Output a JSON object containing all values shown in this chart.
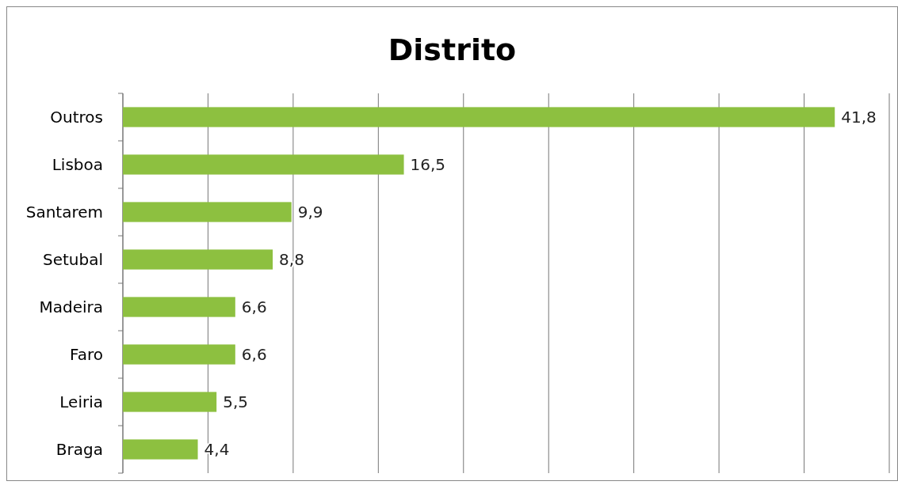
{
  "chart_data": {
    "type": "bar",
    "orientation": "horizontal",
    "title": "Distrito",
    "categories": [
      "Outros",
      "Lisboa",
      "Santarem",
      "Setubal",
      "Madeira",
      "Faro",
      "Leiria",
      "Braga"
    ],
    "values": [
      41.8,
      16.5,
      9.9,
      8.8,
      6.6,
      6.6,
      5.5,
      4.4
    ],
    "value_labels": [
      "41,8",
      "16,5",
      "9,9",
      "8,8",
      "6,6",
      "6,6",
      "5,5",
      "4,4"
    ],
    "color": "#8dc040",
    "xlim": [
      0,
      45
    ],
    "xticks": [
      {
        "value": 0,
        "label": null
      },
      {
        "value": 5,
        "label": null
      },
      {
        "value": 10,
        "label": null
      },
      {
        "value": 15,
        "label": null
      },
      {
        "value": 20,
        "label": null
      },
      {
        "value": 25,
        "label": null
      },
      {
        "value": 30,
        "label": null
      },
      {
        "value": 35,
        "label": null
      },
      {
        "value": 40,
        "label": null
      },
      {
        "value": 45,
        "label": null
      }
    ],
    "grid": "x",
    "tick_labels": "y"
  }
}
